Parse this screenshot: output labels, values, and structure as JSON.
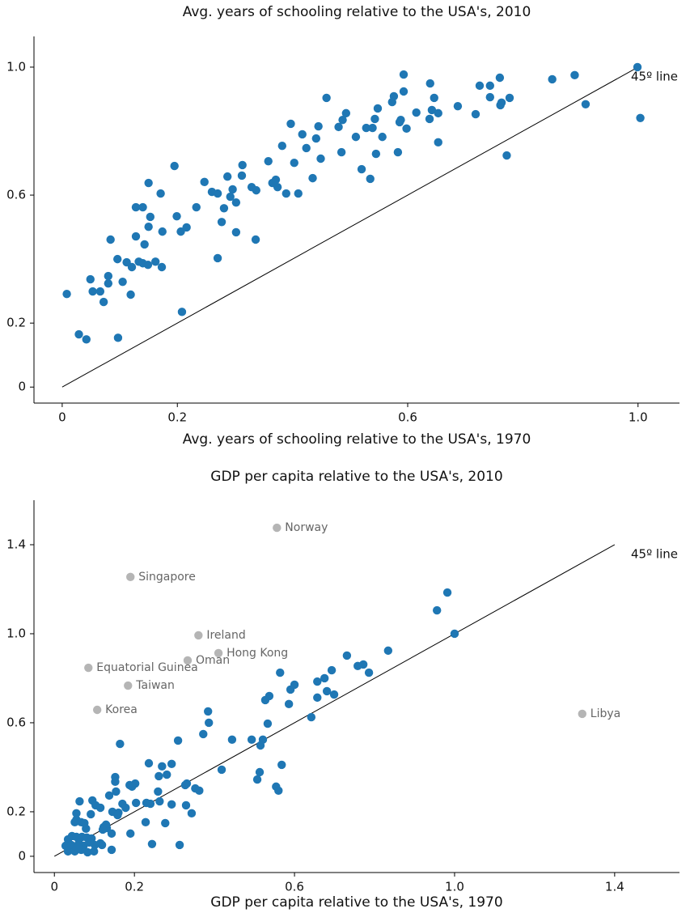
{
  "chart_data": [
    {
      "type": "scatter",
      "title": "Avg. years of schooling relative to the USA's, 2010",
      "xlabel": "Avg. years of schooling relative to the USA's, 1970",
      "color": "#1f77b4",
      "xlim": [
        -0.049,
        1.072
      ],
      "ylim": [
        -0.05,
        1.096
      ],
      "xticks": [
        0,
        0.2,
        0.6,
        {
          "value": 1,
          "label": "1.0"
        }
      ],
      "yticks": [
        0,
        0.2,
        0.6,
        {
          "value": 1,
          "label": "1.0"
        }
      ],
      "line": {
        "x": [
          0,
          1
        ],
        "y": [
          0,
          1
        ],
        "label": "45º line"
      },
      "x": [
        0.008,
        0.029,
        0.042,
        0.049,
        0.053,
        0.066,
        0.072,
        0.08,
        0.08,
        0.084,
        0.096,
        0.097,
        0.105,
        0.112,
        0.121,
        0.119,
        0.128,
        0.128,
        0.133,
        0.14,
        0.143,
        0.14,
        0.149,
        0.15,
        0.15,
        0.153,
        0.162,
        0.171,
        0.174,
        0.173,
        0.195,
        0.199,
        0.208,
        0.206,
        0.216,
        0.233,
        0.247,
        0.26,
        0.27,
        0.27,
        0.277,
        0.281,
        0.287,
        0.292,
        0.296,
        0.302,
        0.302,
        0.312,
        0.313,
        0.329,
        0.337,
        0.336,
        0.358,
        0.365,
        0.371,
        0.374,
        0.382,
        0.389,
        0.397,
        0.403,
        0.41,
        0.417,
        0.424,
        0.435,
        0.441,
        0.445,
        0.449,
        0.459,
        0.48,
        0.485,
        0.487,
        0.493,
        0.51,
        0.52,
        0.528,
        0.535,
        0.539,
        0.543,
        0.545,
        0.548,
        0.556,
        0.573,
        0.576,
        0.583,
        0.586,
        0.588,
        0.593,
        0.593,
        0.598,
        0.615,
        0.638,
        0.639,
        0.642,
        0.646,
        0.653,
        0.653,
        0.687,
        0.718,
        0.725,
        0.743,
        0.743,
        0.76,
        0.761,
        0.763,
        0.772,
        0.777,
        0.851,
        0.89,
        0.909,
        0.999,
        1.004
      ],
      "y": [
        0.291,
        0.165,
        0.149,
        0.337,
        0.299,
        0.299,
        0.266,
        0.324,
        0.347,
        0.461,
        0.4,
        0.154,
        0.329,
        0.39,
        0.375,
        0.289,
        0.471,
        0.562,
        0.392,
        0.562,
        0.446,
        0.387,
        0.382,
        0.638,
        0.501,
        0.532,
        0.392,
        0.605,
        0.486,
        0.375,
        0.691,
        0.534,
        0.235,
        0.486,
        0.499,
        0.562,
        0.641,
        0.61,
        0.605,
        0.403,
        0.516,
        0.559,
        0.658,
        0.595,
        0.618,
        0.577,
        0.484,
        0.661,
        0.694,
        0.625,
        0.615,
        0.461,
        0.706,
        0.638,
        0.648,
        0.625,
        0.754,
        0.605,
        0.823,
        0.701,
        0.605,
        0.79,
        0.747,
        0.653,
        0.777,
        0.815,
        0.714,
        0.904,
        0.813,
        0.734,
        0.835,
        0.856,
        0.782,
        0.681,
        0.81,
        0.651,
        0.81,
        0.838,
        0.729,
        0.871,
        0.782,
        0.891,
        0.909,
        0.734,
        0.828,
        0.835,
        0.924,
        0.977,
        0.808,
        0.858,
        0.838,
        0.949,
        0.866,
        0.904,
        0.856,
        0.765,
        0.878,
        0.853,
        0.942,
        0.942,
        0.906,
        0.967,
        0.881,
        0.889,
        0.724,
        0.904,
        0.962,
        0.975,
        0.884,
        1.0,
        0.841
      ]
    },
    {
      "type": "scatter",
      "title": "GDP per capita relative to the USA's, 2010",
      "xlabel": "GDP per capita relative to the USA's, 1970",
      "color": "#1f77b4",
      "xlim": [
        -0.051,
        1.562
      ],
      "ylim": [
        -0.073,
        1.6
      ],
      "xticks": [
        0,
        0.2,
        0.6,
        {
          "value": 1,
          "label": "1.0"
        },
        1.4
      ],
      "yticks": [
        0,
        0.2,
        0.6,
        {
          "value": 1,
          "label": "1.0"
        },
        1.4
      ],
      "line": {
        "x": [
          0,
          1.4
        ],
        "y": [
          0,
          1.4
        ],
        "label": "45º line"
      },
      "annotation_color": "#b5b5b5",
      "annotations": [
        {
          "label": "Norway",
          "x": 0.556,
          "y": 1.476
        },
        {
          "label": "Singapore",
          "x": 0.19,
          "y": 1.255
        },
        {
          "label": "Ireland",
          "x": 0.36,
          "y": 0.993
        },
        {
          "label": "Hong Kong",
          "x": 0.41,
          "y": 0.913
        },
        {
          "label": "Oman",
          "x": 0.333,
          "y": 0.88
        },
        {
          "label": "Equatorial Guinea",
          "x": 0.085,
          "y": 0.847
        },
        {
          "label": "Taiwan",
          "x": 0.184,
          "y": 0.767
        },
        {
          "label": "Korea",
          "x": 0.107,
          "y": 0.658
        },
        {
          "label": "Libya",
          "x": 1.319,
          "y": 0.64
        }
      ],
      "x": [
        0.982,
        0.956,
        1.0,
        0.834,
        0.731,
        0.772,
        0.758,
        0.786,
        0.564,
        0.693,
        0.675,
        0.657,
        0.6,
        0.59,
        0.681,
        0.699,
        0.537,
        0.527,
        0.657,
        0.586,
        0.642,
        0.384,
        0.386,
        0.533,
        0.372,
        0.164,
        0.309,
        0.444,
        0.493,
        0.521,
        0.515,
        0.568,
        0.513,
        0.507,
        0.554,
        0.56,
        0.418,
        0.236,
        0.269,
        0.293,
        0.281,
        0.261,
        0.152,
        0.202,
        0.188,
        0.194,
        0.152,
        0.331,
        0.327,
        0.352,
        0.362,
        0.259,
        0.137,
        0.154,
        0.204,
        0.263,
        0.23,
        0.24,
        0.17,
        0.329,
        0.293,
        0.178,
        0.343,
        0.063,
        0.095,
        0.103,
        0.115,
        0.145,
        0.16,
        0.158,
        0.091,
        0.055,
        0.055,
        0.051,
        0.067,
        0.075,
        0.079,
        0.123,
        0.131,
        0.129,
        0.143,
        0.121,
        0.19,
        0.228,
        0.277,
        0.313,
        0.244,
        0.143,
        0.093,
        0.101,
        0.115,
        0.119,
        0.034,
        0.044,
        0.055,
        0.069,
        0.081,
        0.028,
        0.042,
        0.061,
        0.073,
        0.087,
        0.034,
        0.051,
        0.067,
        0.083,
        0.099,
        0.059
      ],
      "y": [
        1.185,
        1.105,
        1.0,
        0.924,
        0.902,
        0.862,
        0.855,
        0.825,
        0.825,
        0.836,
        0.8,
        0.785,
        0.771,
        0.749,
        0.742,
        0.727,
        0.72,
        0.702,
        0.713,
        0.684,
        0.625,
        0.651,
        0.6,
        0.596,
        0.549,
        0.505,
        0.52,
        0.524,
        0.524,
        0.524,
        0.498,
        0.411,
        0.378,
        0.345,
        0.313,
        0.295,
        0.389,
        0.418,
        0.404,
        0.415,
        0.367,
        0.36,
        0.356,
        0.327,
        0.32,
        0.313,
        0.335,
        0.327,
        0.32,
        0.305,
        0.295,
        0.291,
        0.273,
        0.291,
        0.24,
        0.247,
        0.24,
        0.236,
        0.236,
        0.229,
        0.233,
        0.218,
        0.193,
        0.247,
        0.251,
        0.229,
        0.218,
        0.2,
        0.196,
        0.185,
        0.189,
        0.193,
        0.164,
        0.153,
        0.153,
        0.149,
        0.124,
        0.131,
        0.127,
        0.142,
        0.102,
        0.12,
        0.102,
        0.153,
        0.149,
        0.051,
        0.055,
        0.029,
        0.08,
        0.051,
        0.058,
        0.051,
        0.076,
        0.091,
        0.087,
        0.087,
        0.084,
        0.047,
        0.051,
        0.058,
        0.047,
        0.062,
        0.022,
        0.022,
        0.029,
        0.018,
        0.022,
        0.04
      ]
    }
  ]
}
